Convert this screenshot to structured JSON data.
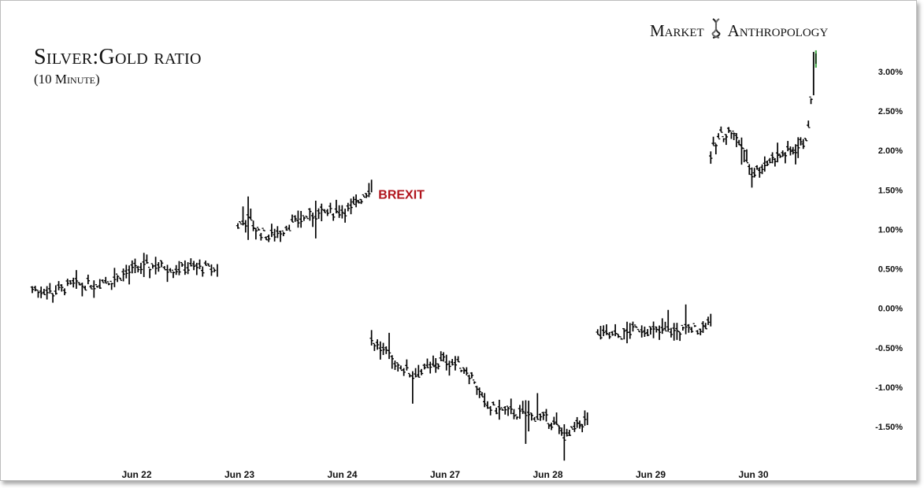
{
  "brand": {
    "word1": "Market",
    "word2": "Anthropology",
    "logo_icon": "dna-helix-icon"
  },
  "chart_data": {
    "type": "line",
    "title": "Silver:Gold ratio",
    "subtitle": "(10 Minute)",
    "xlabel": "",
    "ylabel": "",
    "ylim": [
      -1.85,
      3.25
    ],
    "yticks": [
      -1.5,
      -1.0,
      -0.5,
      0.0,
      0.5,
      1.0,
      1.5,
      2.0,
      2.5,
      3.0
    ],
    "yticklabels": [
      "-1.50%",
      "-1.00%",
      "-0.50%",
      "0.00%",
      "0.50%",
      "1.00%",
      "1.50%",
      "2.00%",
      "2.50%",
      "3.00%"
    ],
    "yaxis_position": "right",
    "grid": false,
    "x_domain": [
      0,
      8
    ],
    "xticks": [
      {
        "x": 1,
        "label": "Jun 22"
      },
      {
        "x": 2,
        "label": "Jun 23"
      },
      {
        "x": 3,
        "label": "Jun 24"
      },
      {
        "x": 4,
        "label": "Jun 27"
      },
      {
        "x": 5,
        "label": "Jun 28"
      },
      {
        "x": 6,
        "label": "Jun 29"
      },
      {
        "x": 7,
        "label": "Jun 30"
      }
    ],
    "series": [
      {
        "values": [
          [
            0.0,
            0.25
          ],
          [
            0.2,
            0.2
          ],
          [
            0.4,
            0.3
          ],
          [
            0.6,
            0.3
          ],
          [
            0.8,
            0.38
          ],
          [
            1.0,
            0.5
          ],
          [
            1.2,
            0.55
          ],
          [
            1.4,
            0.5
          ],
          [
            1.6,
            0.52
          ],
          [
            1.8,
            0.48
          ]
        ]
      },
      {
        "values": [
          [
            2.0,
            1.05
          ],
          [
            2.1,
            1.12
          ],
          [
            2.2,
            0.98
          ],
          [
            2.3,
            0.9
          ],
          [
            2.5,
            1.05
          ],
          [
            2.7,
            1.18
          ],
          [
            2.9,
            1.22
          ],
          [
            3.1,
            1.25
          ],
          [
            3.2,
            1.4
          ],
          [
            3.3,
            1.55
          ]
        ]
      },
      {
        "values": [
          [
            3.3,
            -0.4
          ],
          [
            3.5,
            -0.65
          ],
          [
            3.7,
            -0.85
          ],
          [
            3.9,
            -0.75
          ],
          [
            4.0,
            -0.65
          ],
          [
            4.2,
            -0.75
          ],
          [
            4.3,
            -0.9
          ],
          [
            4.4,
            -1.25
          ],
          [
            4.6,
            -1.3
          ],
          [
            4.8,
            -1.35
          ],
          [
            5.0,
            -1.4
          ],
          [
            5.1,
            -1.5
          ],
          [
            5.2,
            -1.65
          ],
          [
            5.3,
            -1.5
          ],
          [
            5.4,
            -1.4
          ]
        ]
      },
      {
        "values": [
          [
            5.5,
            -0.35
          ],
          [
            5.7,
            -0.35
          ],
          [
            5.9,
            -0.25
          ],
          [
            6.1,
            -0.3
          ],
          [
            6.3,
            -0.28
          ],
          [
            6.5,
            -0.25
          ],
          [
            6.6,
            -0.15
          ]
        ]
      },
      {
        "values": [
          [
            6.6,
            1.95
          ],
          [
            6.7,
            2.2
          ],
          [
            6.8,
            2.25
          ],
          [
            6.9,
            2.05
          ],
          [
            7.0,
            1.7
          ],
          [
            7.1,
            1.8
          ],
          [
            7.2,
            1.9
          ],
          [
            7.3,
            1.95
          ],
          [
            7.4,
            2.0
          ],
          [
            7.5,
            2.1
          ],
          [
            7.55,
            2.25
          ],
          [
            7.6,
            3.15
          ]
        ]
      }
    ],
    "annotations": [
      {
        "text": "BREXIT",
        "x": 3.55,
        "y": 1.45,
        "color": "#b0141c"
      }
    ],
    "last_bar_color": "#4caf50"
  }
}
